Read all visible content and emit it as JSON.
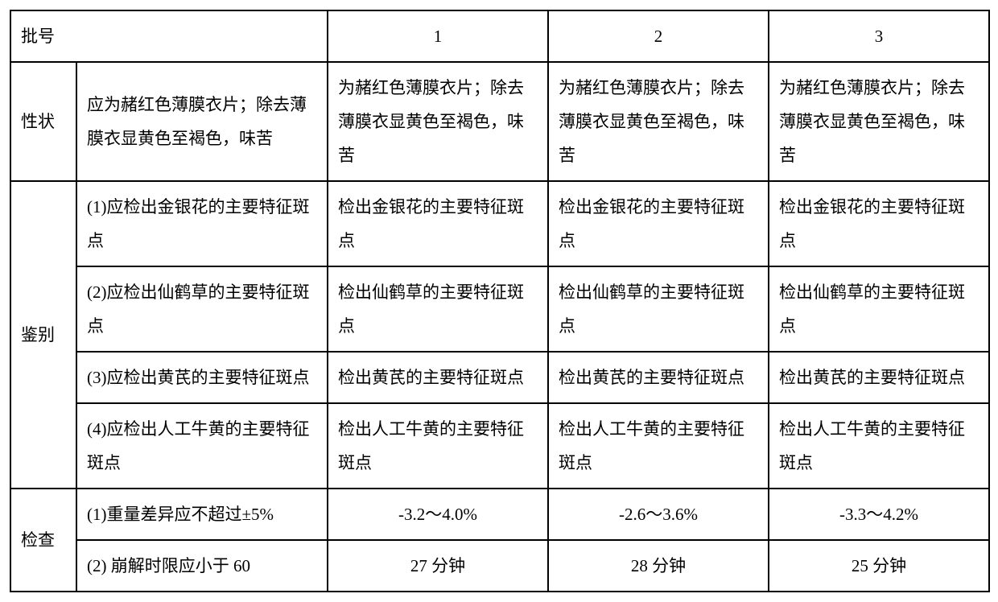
{
  "header": {
    "batch_label": "批号",
    "cols": [
      "1",
      "2",
      "3"
    ]
  },
  "rows": [
    {
      "group": "性状",
      "spec": "应为赭红色薄膜衣片；除去薄膜衣显黄色至褐色，味苦",
      "vals": [
        "为赭红色薄膜衣片；除去薄膜衣显黄色至褐色，味苦",
        "为赭红色薄膜衣片；除去薄膜衣显黄色至褐色，味苦",
        "为赭红色薄膜衣片；除去薄膜衣显黄色至褐色，味苦"
      ],
      "center": false
    },
    {
      "group": "鉴别",
      "spec": "(1)应检出金银花的主要特征斑点",
      "vals": [
        "检出金银花的主要特征斑点",
        "检出金银花的主要特征斑点",
        "检出金银花的主要特征斑点"
      ],
      "center": false
    },
    {
      "spec": "(2)应检出仙鹤草的主要特征斑点",
      "vals": [
        "检出仙鹤草的主要特征斑点",
        "检出仙鹤草的主要特征斑点",
        "检出仙鹤草的主要特征斑点"
      ],
      "center": false
    },
    {
      "spec": "(3)应检出黄芪的主要特征斑点",
      "vals": [
        "检出黄芪的主要特征斑点",
        "检出黄芪的主要特征斑点",
        "检出黄芪的主要特征斑点"
      ],
      "center": false
    },
    {
      "spec": "(4)应检出人工牛黄的主要特征斑点",
      "vals": [
        "检出人工牛黄的主要特征斑点",
        "检出人工牛黄的主要特征斑点",
        "检出人工牛黄的主要特征斑点"
      ],
      "center": false
    },
    {
      "group": "检查",
      "spec": "(1)重量差异应不超过±5%",
      "vals": [
        "-3.2～4.0%",
        "-2.6～3.6%",
        "-3.3～4.2%"
      ],
      "center": true
    },
    {
      "spec": "(2) 崩解时限应小于 60",
      "vals": [
        "27 分钟",
        "28 分钟",
        "25 分钟"
      ],
      "center": true
    }
  ],
  "groupspans": {
    "性状": 1,
    "鉴别": 4,
    "检查": 2
  }
}
